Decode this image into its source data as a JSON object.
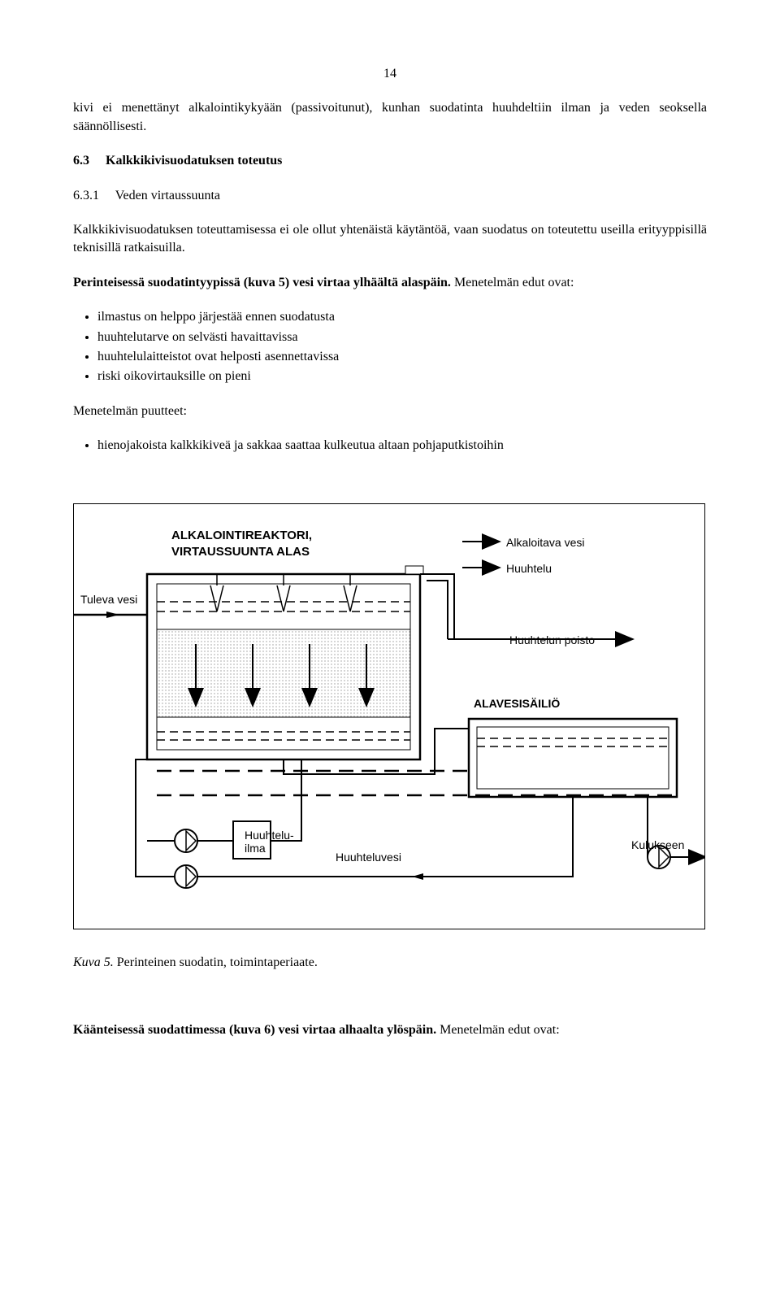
{
  "page": {
    "number": "14",
    "para1": "kivi ei menettänyt alkalointikykyään (passivoitunut), kunhan suodatinta huuhdeltiin ilman ja veden seoksella säännöllisesti.",
    "heading_h3_num": "6.3",
    "heading_h3_text": "Kalkkikivisuodatuksen toteutus",
    "heading_h4_num": "6.3.1",
    "heading_h4_text": "Veden virtaussuunta",
    "para2": "Kalkkikivisuodatuksen toteuttamisessa ei ole ollut yhtenäistä käytäntöä, vaan suodatus on toteutettu useilla erityyppisillä teknisillä ratkaisuilla.",
    "para3_bold": "Perinteisessä suodatintyypissä (kuva 5) vesi virtaa ylhäältä alaspäin.",
    "para3_tail": " Menetelmän edut ovat:",
    "bullets1": [
      "ilmastus on helppo järjestää ennen suodatusta",
      "huuhtelutarve on selvästi havaittavissa",
      "huuhtelulaitteistot ovat helposti asennettavissa",
      "riski oikovirtauksille on pieni"
    ],
    "puutteet_label": "Menetelmän puutteet:",
    "bullets2": [
      "hienojakoista kalkkikiveä ja sakkaa saattaa kulkeutua altaan pohjaputkistoihin"
    ],
    "figure_caption_italic": "Kuva 5.",
    "figure_caption_rest": " Perinteinen suodatin, toimintaperiaate.",
    "para_last_bold": "Käänteisessä suodattimessa (kuva 6) vesi virtaa alhaalta ylöspäin.",
    "para_last_tail": " Menetelmän edut ovat:"
  },
  "diagram": {
    "header_line1": "ALKALOINTIREAKTORI,",
    "header_line2": "VIRTAUSSUUNTA ALAS",
    "label_tuleva": "Tuleva vesi",
    "label_alkaloitava": "Alkaloitava vesi",
    "label_huuhtelu": "Huuhtelu",
    "label_huuhtelun_poisto": "Huuhtelun poisto",
    "label_alavesi": "ALAVESISÄILIÖ",
    "label_huuhteluilma1": "Huuhtelu-",
    "label_huuhteluilma2": "ilma",
    "label_huuhteluvesi": "Huuhteluvesi",
    "label_kulukseen": "Kulukseen",
    "colors": {
      "stroke": "#000000",
      "dotfill": "#e0e0e0",
      "bg": "#ffffff"
    }
  }
}
